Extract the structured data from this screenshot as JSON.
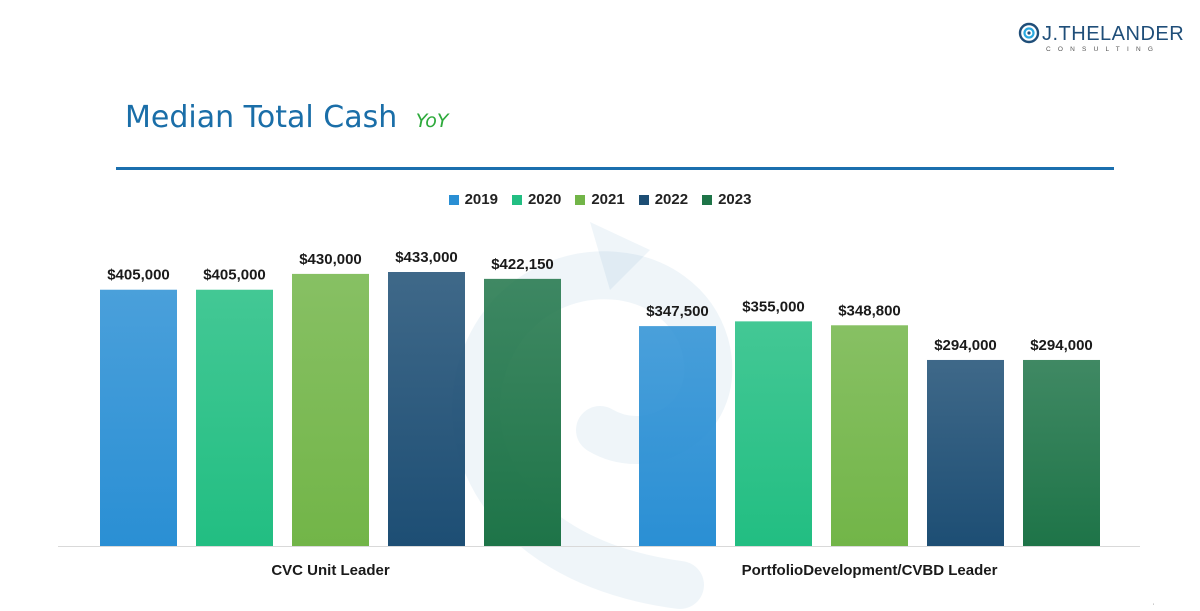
{
  "brand": {
    "name": "J.THELANDER",
    "sub": "CONSULTING",
    "icon": "swirl-logo-icon",
    "color": "#1f4e79"
  },
  "header": {
    "title": "Median Total Cash",
    "subtitle": "YoY"
  },
  "colors": {
    "title": "#1a6ea8",
    "subtitle": "#2eaa3c",
    "rule": "#1b6fae"
  },
  "chart_data": {
    "type": "bar",
    "categories": [
      "CVC Unit Leader",
      "PortfolioDevelopment/CVBD Leader"
    ],
    "series": [
      {
        "name": "2019",
        "color": "#2a8fd4",
        "values": [
          405000,
          347500
        ],
        "labels": [
          "$405,000",
          "$347,500"
        ]
      },
      {
        "name": "2020",
        "color": "#22be82",
        "values": [
          405000,
          355000
        ],
        "labels": [
          "$405,000",
          "$355,000"
        ]
      },
      {
        "name": "2021",
        "color": "#72b548",
        "values": [
          430000,
          348800
        ],
        "labels": [
          "$430,000",
          "$348,800"
        ]
      },
      {
        "name": "2022",
        "color": "#1d4e74",
        "values": [
          433000,
          294000
        ],
        "labels": [
          "$433,000",
          "$294,000"
        ]
      },
      {
        "name": "2023",
        "color": "#1e7448",
        "values": [
          422150,
          294000
        ],
        "labels": [
          "$422,150",
          "$294,000"
        ]
      }
    ],
    "ylim": [
      0,
      433000
    ],
    "legend_position": "top-center",
    "grid": false,
    "xlabel": "",
    "ylabel": ""
  }
}
